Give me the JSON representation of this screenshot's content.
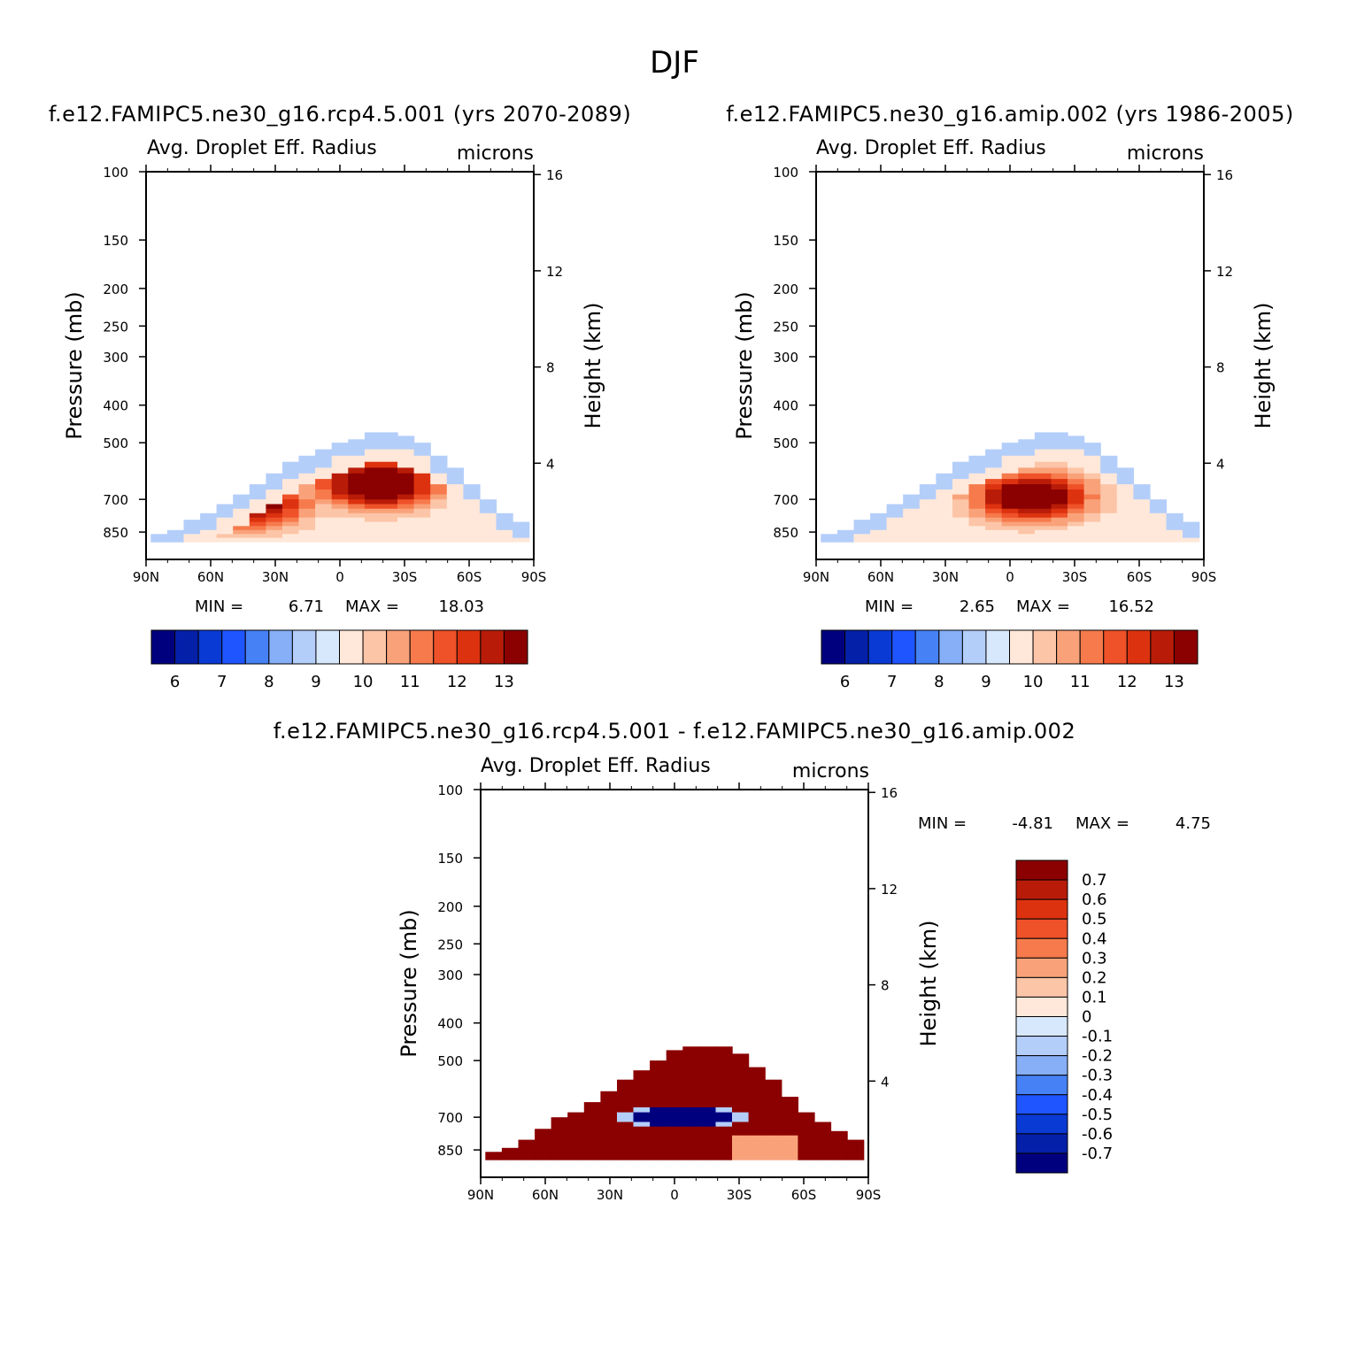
{
  "figure": {
    "title": "DJF",
    "left_subtitle": "f.e12.FAMIPC5.ne30_g16.rcp4.5.001 (yrs 2070-2089)",
    "right_subtitle": "f.e12.FAMIPC5.ne30_g16.amip.002 (yrs 1986-2005)",
    "diff_subtitle": "f.e12.FAMIPC5.ne30_g16.rcp4.5.001 - f.e12.FAMIPC5.ne30_g16.amip.002"
  },
  "chart_data": [
    {
      "type": "heatmap",
      "id": "rcp45",
      "title": "Avg. Droplet Eff. Radius",
      "units": "microns",
      "xlabel": "",
      "ylabel": "Pressure (mb)",
      "y2label": "Height (km)",
      "x_ticks": [
        "90N",
        "60N",
        "30N",
        "0",
        "30S",
        "60S",
        "90S"
      ],
      "y_ticks": [
        "100",
        "150",
        "200",
        "250",
        "300",
        "400",
        "500",
        "700",
        "850"
      ],
      "y2_ticks": [
        "16",
        "12",
        "8",
        "4"
      ],
      "ylim": [
        1000,
        100
      ],
      "min_label": "MIN =",
      "min_value": "6.71",
      "max_label": "MAX =",
      "max_value": "18.03",
      "cloud_top_mb": [
        860,
        840,
        790,
        760,
        720,
        680,
        640,
        600,
        560,
        540,
        520,
        500,
        490,
        470,
        470,
        480,
        500,
        540,
        580,
        640,
        700,
        760,
        800
      ],
      "core_blobs": [
        {
          "lat": 42,
          "p": 720,
          "value": 14.0
        },
        {
          "lat": -18,
          "p": 640,
          "value": 15.0
        }
      ],
      "colorbar_labels": [
        "6",
        "7",
        "8",
        "9",
        "10",
        "11",
        "12",
        "13"
      ],
      "colors": [
        "#00007f",
        "#0520a8",
        "#0a3ad4",
        "#1f55ff",
        "#4682f5",
        "#87aff7",
        "#b4cefa",
        "#d8e8fc",
        "#ffe8d9",
        "#fcc5a8",
        "#f9a27a",
        "#f67a4c",
        "#ef5129",
        "#dd320f",
        "#b81c08",
        "#8b0000"
      ]
    },
    {
      "type": "heatmap",
      "id": "amip",
      "title": "Avg. Droplet Eff. Radius",
      "units": "microns",
      "xlabel": "",
      "ylabel": "Pressure (mb)",
      "y2label": "Height (km)",
      "x_ticks": [
        "90N",
        "60N",
        "30N",
        "0",
        "30S",
        "60S",
        "90S"
      ],
      "y_ticks": [
        "100",
        "150",
        "200",
        "250",
        "300",
        "400",
        "500",
        "700",
        "850"
      ],
      "y2_ticks": [
        "16",
        "12",
        "8",
        "4"
      ],
      "ylim": [
        1000,
        100
      ],
      "min_label": "MIN =",
      "min_value": "2.65",
      "max_label": "MAX =",
      "max_value": "16.52",
      "cloud_top_mb": [
        860,
        840,
        790,
        760,
        720,
        680,
        640,
        600,
        560,
        540,
        520,
        500,
        490,
        470,
        470,
        480,
        500,
        540,
        580,
        640,
        700,
        760,
        800
      ],
      "core_blobs": [
        {
          "lat": -10,
          "p": 690,
          "value": 14.5
        }
      ],
      "colorbar_labels": [
        "6",
        "7",
        "8",
        "9",
        "10",
        "11",
        "12",
        "13"
      ],
      "colors": [
        "#00007f",
        "#0520a8",
        "#0a3ad4",
        "#1f55ff",
        "#4682f5",
        "#87aff7",
        "#b4cefa",
        "#d8e8fc",
        "#ffe8d9",
        "#fcc5a8",
        "#f9a27a",
        "#f67a4c",
        "#ef5129",
        "#dd320f",
        "#b81c08",
        "#8b0000"
      ]
    },
    {
      "type": "heatmap",
      "id": "diff",
      "title": "Avg. Droplet Eff. Radius",
      "units": "microns",
      "xlabel": "",
      "ylabel": "Pressure (mb)",
      "y2label": "Height (km)",
      "x_ticks": [
        "90N",
        "60N",
        "30N",
        "0",
        "30S",
        "60S",
        "90S"
      ],
      "y_ticks": [
        "100",
        "150",
        "200",
        "250",
        "300",
        "400",
        "500",
        "700",
        "850"
      ],
      "y2_ticks": [
        "16",
        "12",
        "8",
        "4"
      ],
      "ylim": [
        1000,
        100
      ],
      "min_label": "MIN =",
      "min_value": "-4.81",
      "max_label": "MAX =",
      "max_value": "4.75",
      "cloud_top_mb": [
        860,
        840,
        800,
        750,
        700,
        680,
        640,
        600,
        560,
        530,
        500,
        470,
        460,
        460,
        460,
        480,
        520,
        560,
        620,
        680,
        720,
        760,
        800
      ],
      "blue_core": {
        "lat_from": 22,
        "lat_to": -28,
        "p_from": 660,
        "p_to": 740,
        "value": -4.8
      },
      "colorbar_labels": [
        "0.7",
        "0.6",
        "0.5",
        "0.4",
        "0.3",
        "0.2",
        "0.1",
        "0",
        "-0.1",
        "-0.2",
        "-0.3",
        "-0.4",
        "-0.5",
        "-0.6",
        "-0.7"
      ],
      "colors": [
        "#8b0000",
        "#b81c08",
        "#dd320f",
        "#ef5129",
        "#f67a4c",
        "#f9a27a",
        "#fcc5a8",
        "#ffe8d9",
        "#d8e8fc",
        "#b4cefa",
        "#87aff7",
        "#4682f5",
        "#1f55ff",
        "#0a3ad4",
        "#0520a8",
        "#00007f"
      ]
    }
  ]
}
